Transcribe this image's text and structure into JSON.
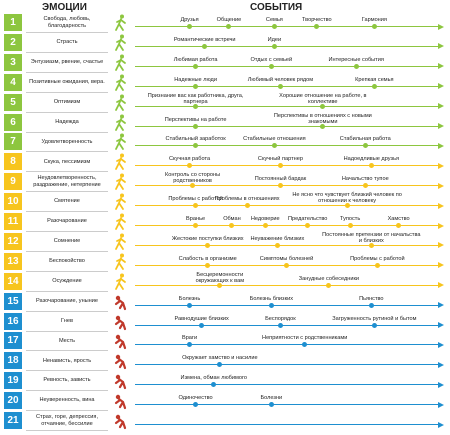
{
  "headers": {
    "emotions": "ЭМОЦИИ",
    "events": "СОБЫТИЯ"
  },
  "colors": {
    "green": "#8dc63f",
    "yellow": "#f7c51e",
    "blue": "#1e8fd0",
    "dark_figure": "#c0392b"
  },
  "rows": [
    {
      "num": "1",
      "emotion": "Свобода, любовь, благодарность",
      "color": "green",
      "figure": "walking-figure-icon",
      "events": [
        {
          "t": "Друзья",
          "p": 0.18,
          "pos": "above"
        },
        {
          "t": "Общение",
          "p": 0.31,
          "pos": "above"
        },
        {
          "t": "Семья",
          "p": 0.46,
          "pos": "above"
        },
        {
          "t": "Творчество",
          "p": 0.6,
          "pos": "above"
        },
        {
          "t": "Гармония",
          "p": 0.79,
          "pos": "above"
        }
      ]
    },
    {
      "num": "2",
      "emotion": "Страсть",
      "color": "green",
      "figure": "walking-figure-icon",
      "events": [
        {
          "t": "Романтические встречи",
          "p": 0.23,
          "pos": "above"
        },
        {
          "t": "Идеи",
          "p": 0.46,
          "pos": "above"
        }
      ]
    },
    {
      "num": "3",
      "emotion": "Энтузиазм, рвение, счастье",
      "color": "green",
      "figure": "walking-figure-icon",
      "events": [
        {
          "t": "Любимая работа",
          "p": 0.2,
          "pos": "above"
        },
        {
          "t": "Отдых с семьей",
          "p": 0.45,
          "pos": "above"
        },
        {
          "t": "Интересные события",
          "p": 0.73,
          "pos": "above"
        }
      ]
    },
    {
      "num": "4",
      "emotion": "Позитивные ожидания, вера.",
      "color": "green",
      "figure": "walking-figure-icon",
      "events": [
        {
          "t": "Надежные люди",
          "p": 0.2,
          "pos": "above"
        },
        {
          "t": "Любимый человек рядом",
          "p": 0.48,
          "pos": "above"
        },
        {
          "t": "Крепкая семья",
          "p": 0.79,
          "pos": "above"
        }
      ]
    },
    {
      "num": "5",
      "emotion": "Оптимизм",
      "color": "green",
      "figure": "walking-figure-icon",
      "events": [
        {
          "t": "Признание вас как работника, друга, партнера",
          "p": 0.2,
          "pos": "above"
        },
        {
          "t": "Хорошие отношение на работе, в коллективе",
          "p": 0.62,
          "pos": "above"
        }
      ]
    },
    {
      "num": "6",
      "emotion": "Надежда",
      "color": "green",
      "figure": "walking-figure-icon",
      "events": [
        {
          "t": "Перспективы на работе",
          "p": 0.2,
          "pos": "above"
        },
        {
          "t": "Перспективы в отношениях с новыми знакомыми",
          "p": 0.62,
          "pos": "above"
        }
      ]
    },
    {
      "num": "7",
      "emotion": "Удовлетворенность",
      "color": "green",
      "figure": "walking-figure-icon",
      "events": [
        {
          "t": "Стабильный заработок",
          "p": 0.2,
          "pos": "above"
        },
        {
          "t": "Стабильные отношения",
          "p": 0.46,
          "pos": "above"
        },
        {
          "t": "Стабильная работа",
          "p": 0.76,
          "pos": "above"
        }
      ]
    },
    {
      "num": "8",
      "emotion": "Скука, пессимизм",
      "color": "yellow",
      "figure": "walking-figure-icon",
      "events": [
        {
          "t": "Скучная работа",
          "p": 0.18,
          "pos": "above"
        },
        {
          "t": "Скучный партнер",
          "p": 0.48,
          "pos": "above"
        },
        {
          "t": "Надоедливые друзья",
          "p": 0.78,
          "pos": "above"
        }
      ]
    },
    {
      "num": "9",
      "emotion": "Неудовлетворенность, раздражение, нетерпение",
      "color": "yellow",
      "figure": "walking-figure-icon",
      "events": [
        {
          "t": "Контроль со стороны родственников",
          "p": 0.19,
          "pos": "above"
        },
        {
          "t": "Постоянный бардак",
          "p": 0.48,
          "pos": "above"
        },
        {
          "t": "Начальство тупое",
          "p": 0.76,
          "pos": "above"
        }
      ]
    },
    {
      "num": "10",
      "emotion": "Смятение",
      "color": "yellow",
      "figure": "walking-figure-icon",
      "events": [
        {
          "t": "Проблемы с работой",
          "p": 0.2,
          "pos": "above"
        },
        {
          "t": "Проблемы в отношениях",
          "p": 0.37,
          "pos": "above"
        },
        {
          "t": "Не ясно что чувствует близкий человек по отношении к человеку",
          "p": 0.7,
          "pos": "above"
        }
      ]
    },
    {
      "num": "11",
      "emotion": "Разочарование",
      "color": "yellow",
      "figure": "walking-figure-icon",
      "events": [
        {
          "t": "Вранье",
          "p": 0.2,
          "pos": "above"
        },
        {
          "t": "Обман",
          "p": 0.32,
          "pos": "above"
        },
        {
          "t": "Недоверие",
          "p": 0.43,
          "pos": "above"
        },
        {
          "t": "Предательство",
          "p": 0.57,
          "pos": "above"
        },
        {
          "t": "Тупость",
          "p": 0.71,
          "pos": "above"
        },
        {
          "t": "Хамство",
          "p": 0.87,
          "pos": "above"
        }
      ]
    },
    {
      "num": "12",
      "emotion": "Сомнение",
      "color": "yellow",
      "figure": "walking-figure-icon",
      "events": [
        {
          "t": "Жестокие поступки близких",
          "p": 0.24,
          "pos": "above"
        },
        {
          "t": "Неуважение близких",
          "p": 0.47,
          "pos": "above"
        },
        {
          "t": "Постоянные претензии от начальства и близких",
          "p": 0.78,
          "pos": "above"
        }
      ]
    },
    {
      "num": "13",
      "emotion": "Беспокойство",
      "color": "yellow",
      "figure": "walking-figure-icon",
      "events": [
        {
          "t": "Слабость в организме",
          "p": 0.24,
          "pos": "above"
        },
        {
          "t": "Симптомы болезней",
          "p": 0.5,
          "pos": "above"
        },
        {
          "t": "Проблемы с работой",
          "p": 0.8,
          "pos": "above"
        }
      ]
    },
    {
      "num": "14",
      "emotion": "Осуждение",
      "color": "yellow",
      "figure": "walking-figure-icon",
      "events": [
        {
          "t": "Бесцеремонности окружающих к вам",
          "p": 0.28,
          "pos": "above"
        },
        {
          "t": "Занудные собеседники",
          "p": 0.64,
          "pos": "above"
        }
      ]
    },
    {
      "num": "15",
      "emotion": "Разочарование, уныние",
      "color": "blue",
      "figure": "crouching-figure-icon",
      "events": [
        {
          "t": "Болезнь",
          "p": 0.18,
          "pos": "above"
        },
        {
          "t": "Болезнь близких",
          "p": 0.45,
          "pos": "above"
        },
        {
          "t": "Пьянство",
          "p": 0.78,
          "pos": "above"
        }
      ]
    },
    {
      "num": "16",
      "emotion": "Гнев",
      "color": "blue",
      "figure": "crouching-figure-icon",
      "events": [
        {
          "t": "Равнодушие близких",
          "p": 0.22,
          "pos": "above"
        },
        {
          "t": "Беспорядок",
          "p": 0.48,
          "pos": "above"
        },
        {
          "t": "Загруженность рутиной и бытом",
          "p": 0.79,
          "pos": "above"
        }
      ]
    },
    {
      "num": "17",
      "emotion": "Месть",
      "color": "blue",
      "figure": "crouching-figure-icon",
      "events": [
        {
          "t": "Враги",
          "p": 0.18,
          "pos": "above"
        },
        {
          "t": "Неприятности с родственниками",
          "p": 0.56,
          "pos": "above"
        }
      ]
    },
    {
      "num": "18",
      "emotion": "Ненависть, ярость",
      "color": "blue",
      "figure": "crouching-figure-icon",
      "events": [
        {
          "t": "Окружает хамство и насилие",
          "p": 0.28,
          "pos": "above"
        }
      ]
    },
    {
      "num": "19",
      "emotion": "Ревность, зависть",
      "color": "blue",
      "figure": "crouching-figure-icon",
      "events": [
        {
          "t": "Измена, обман любимого",
          "p": 0.26,
          "pos": "above"
        }
      ]
    },
    {
      "num": "20",
      "emotion": "Неуверенность, вина",
      "color": "blue",
      "figure": "crouching-figure-icon",
      "events": [
        {
          "t": "Одиночество",
          "p": 0.2,
          "pos": "above"
        },
        {
          "t": "Болезни",
          "p": 0.45,
          "pos": "above"
        }
      ]
    },
    {
      "num": "21",
      "emotion": "Страх, горе, депрессия, отчаяние, бессилие",
      "color": "blue",
      "figure": "crouching-figure-icon",
      "events": []
    }
  ]
}
